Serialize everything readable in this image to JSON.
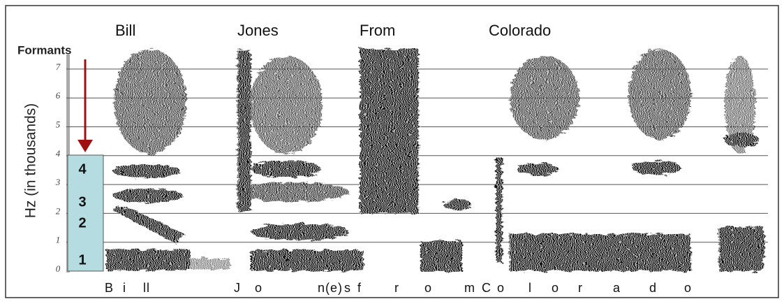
{
  "words": [
    "Bill",
    "Jones",
    "From",
    "Colorado"
  ],
  "phonemes": [
    "B",
    "i",
    "ll",
    "J",
    "o",
    "n(e)",
    "s",
    "f",
    "r",
    "o",
    "m",
    "C",
    "o",
    "l",
    "o",
    "r",
    "a",
    "d",
    "o"
  ],
  "y_axis": {
    "label": "Hz (in thousands)",
    "ticks": [
      "0",
      "1",
      "2",
      "3",
      "4",
      "5",
      "6",
      "7"
    ]
  },
  "formants": {
    "title": "Formants",
    "labels": [
      "4",
      "3",
      "2",
      "1"
    ]
  }
}
